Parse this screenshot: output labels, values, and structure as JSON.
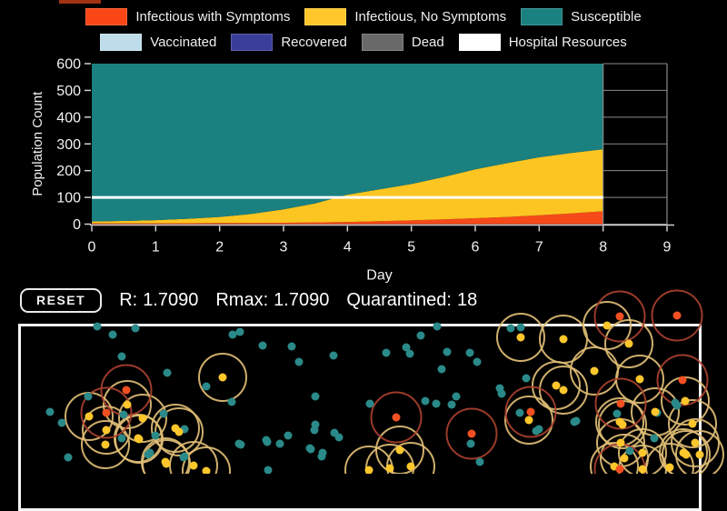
{
  "app": {
    "background": "#000000"
  },
  "top_sliver": {
    "name": "cropped-swatch-above",
    "color": "#a23212"
  },
  "legend": {
    "rows": [
      [
        {
          "label": "Infectious with Symptoms",
          "color": "#fa4616"
        },
        {
          "label": "Infectious, No Symptoms",
          "color": "#ffc72c"
        },
        {
          "label": "Susceptible",
          "color": "#1b8080"
        }
      ],
      [
        {
          "label": "Vaccinated",
          "color": "#bfdcea"
        },
        {
          "label": "Recovered",
          "color": "#3a3e99"
        },
        {
          "label": "Dead",
          "color": "#696969"
        },
        {
          "label": "Hospital Resources",
          "color": "#ffffff"
        }
      ]
    ]
  },
  "chart_data": {
    "type": "area",
    "stacked": true,
    "title": "",
    "xlabel": "Day",
    "ylabel": "Population Count",
    "xlim": [
      0,
      9
    ],
    "ylim": [
      0,
      600
    ],
    "xticks": [
      0,
      1,
      2,
      3,
      4,
      5,
      6,
      7,
      8,
      9
    ],
    "yticks": [
      0,
      100,
      200,
      300,
      400,
      500,
      600
    ],
    "grid": "partial-right-of-data",
    "legend_position": "top",
    "sim_end_day": 8,
    "x": [
      0,
      0.5,
      1,
      1.5,
      2,
      2.5,
      3,
      3.5,
      4,
      4.5,
      5,
      5.5,
      6,
      6.5,
      7,
      7.5,
      8
    ],
    "series": [
      {
        "name": "Infectious with Symptoms",
        "color": "#f64a1a",
        "values": [
          3,
          3,
          3,
          3.5,
          4,
          4.5,
          5,
          6.5,
          8,
          11,
          14,
          18,
          22,
          27,
          33,
          40,
          48
        ]
      },
      {
        "name": "Infectious, No Symptoms",
        "color": "#fcc521",
        "values": [
          7,
          9,
          12,
          16.5,
          23,
          33.5,
          50,
          71.5,
          102,
          119,
          136,
          158,
          183,
          201,
          217,
          226,
          232
        ]
      },
      {
        "name": "Susceptible",
        "color": "#1b8080",
        "values": [
          590,
          588,
          585,
          580,
          573,
          562,
          545,
          522,
          490,
          470,
          450,
          424,
          395,
          372,
          350,
          334,
          320
        ]
      }
    ],
    "hospital_line": {
      "name": "Hospital Resources",
      "value": 100,
      "color": "#ffffff"
    },
    "axis_color": "#cfcfcf",
    "grid_color": "#8a8a8a",
    "tick_label_color": "#f2f2f2"
  },
  "stats": {
    "reset_label": "RESET",
    "items": [
      {
        "id": "r",
        "label": "R:",
        "value": "1.7090"
      },
      {
        "id": "rmax",
        "label": "Rmax:",
        "value": "1.7090"
      },
      {
        "id": "quarantined",
        "label": "Quarantined:",
        "value": "18"
      }
    ]
  },
  "sim": {
    "dot_radius": 4.5,
    "ring_radius": 26,
    "dot_colors": {
      "susceptible": "#2a8a89",
      "infectious_no_symptoms": "#ffc72c",
      "infectious_symptoms": "#f25022"
    },
    "ring_colors": {
      "infectious_no_symptoms": "#e0bd75",
      "infectious_symptoms": "#a8402f"
    },
    "dots": {
      "susceptible": [
        [
          107,
          359
        ],
        [
          124,
          368
        ],
        [
          149,
          361
        ],
        [
          256,
          368
        ],
        [
          264,
          365
        ],
        [
          289,
          380
        ],
        [
          321,
          381
        ],
        [
          134,
          392
        ],
        [
          184,
          410
        ],
        [
          329,
          398
        ],
        [
          367,
          391
        ],
        [
          227,
          425
        ],
        [
          347,
          436
        ],
        [
          255,
          442
        ],
        [
          97,
          436
        ],
        [
          136,
          456
        ],
        [
          180,
          455
        ],
        [
          203,
          472
        ],
        [
          55,
          453
        ],
        [
          68,
          465
        ],
        [
          75,
          503
        ],
        [
          163,
          500
        ],
        [
          203,
          502
        ],
        [
          263,
          488
        ],
        [
          293,
          484
        ],
        [
          317,
          479
        ],
        [
          308,
          488
        ],
        [
          347,
          467
        ],
        [
          341,
          493
        ],
        [
          354,
          502
        ],
        [
          373,
          481
        ],
        [
          265,
          489
        ],
        [
          294,
          486
        ],
        [
          346,
          473
        ],
        [
          342,
          494
        ],
        [
          355,
          498
        ],
        [
          368,
          476
        ],
        [
          202,
          503
        ],
        [
          165,
          498
        ],
        [
          171,
          479
        ],
        [
          295,
          517
        ],
        [
          425,
          388
        ],
        [
          447,
          382
        ],
        [
          451,
          389
        ],
        [
          463,
          369
        ],
        [
          481,
          359
        ],
        [
          492,
          387
        ],
        [
          517,
          388
        ],
        [
          486,
          406
        ],
        [
          525,
          398
        ],
        [
          550,
          427
        ],
        [
          579,
          416
        ],
        [
          552,
          433
        ],
        [
          407,
          444
        ],
        [
          468,
          441
        ],
        [
          480,
          444
        ],
        [
          497,
          445
        ],
        [
          502,
          436
        ],
        [
          562,
          361
        ],
        [
          573,
          360
        ],
        [
          518,
          488
        ],
        [
          528,
          508
        ],
        [
          572,
          454
        ],
        [
          590,
          474
        ],
        [
          632,
          464
        ],
        [
          679,
          455
        ],
        [
          723,
          454
        ],
        [
          745,
          446
        ],
        [
          634,
          463
        ],
        [
          593,
          472
        ],
        [
          743,
          443
        ],
        [
          693,
          496
        ],
        [
          720,
          482
        ],
        [
          134,
          482
        ]
      ],
      "infectious_no_symptoms": [
        [
          245,
          415
        ],
        [
          98,
          458
        ],
        [
          117,
          473
        ],
        [
          116,
          489
        ],
        [
          152,
          482
        ],
        [
          157,
          460
        ],
        [
          193,
          471
        ],
        [
          182,
          508
        ],
        [
          140,
          445
        ],
        [
          197,
          475
        ],
        [
          227,
          518
        ],
        [
          213,
          512
        ],
        [
          406,
          517
        ],
        [
          440,
          495
        ],
        [
          429,
          515
        ],
        [
          452,
          513
        ],
        [
          573,
          371
        ],
        [
          620,
          373
        ],
        [
          668,
          358
        ],
        [
          692,
          378
        ],
        [
          654,
          408
        ],
        [
          612,
          424
        ],
        [
          620,
          429
        ],
        [
          704,
          417
        ],
        [
          682,
          464
        ],
        [
          721,
          453
        ],
        [
          754,
          441
        ],
        [
          683,
          487
        ],
        [
          687,
          504
        ],
        [
          707,
          498
        ],
        [
          752,
          498
        ],
        [
          770,
          500
        ],
        [
          765,
          487
        ],
        [
          582,
          462
        ],
        [
          685,
          467
        ],
        [
          755,
          500
        ],
        [
          676,
          513
        ],
        [
          707,
          516
        ],
        [
          737,
          514
        ],
        [
          153,
          483
        ],
        [
          183,
          510
        ],
        [
          762,
          466
        ]
      ],
      "infectious_symptoms": [
        [
          139,
          429
        ],
        [
          117,
          454
        ],
        [
          436,
          459
        ],
        [
          519,
          477
        ],
        [
          584,
          453
        ],
        [
          751,
          418
        ],
        [
          683,
          444
        ],
        [
          682,
          516
        ],
        [
          682,
          348
        ],
        [
          745,
          347
        ]
      ]
    }
  }
}
